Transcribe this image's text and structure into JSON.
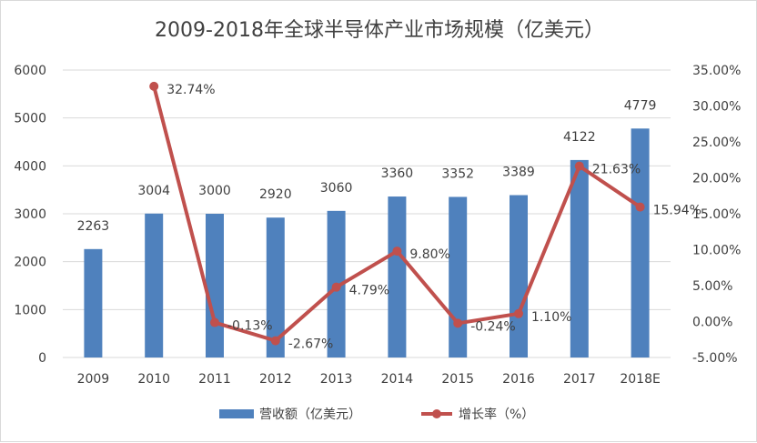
{
  "chart_data": {
    "type": "bar",
    "title": "2009-2018年全球半导体产业市场规模（亿美元）",
    "categories": [
      "2009",
      "2010",
      "2011",
      "2012",
      "2013",
      "2014",
      "2015",
      "2016",
      "2017",
      "2018E"
    ],
    "series": [
      {
        "name": "营收额（亿美元）",
        "kind": "bar",
        "axis": "left",
        "color": "#4f81bd",
        "values": [
          2263,
          3004,
          3000,
          2920,
          3060,
          3360,
          3352,
          3389,
          4122,
          4779
        ],
        "labels": [
          "2263",
          "3004",
          "3000",
          "2920",
          "3060",
          "3360",
          "3352",
          "3389",
          "4122",
          "4779"
        ]
      },
      {
        "name": "增长率（%）",
        "kind": "line",
        "axis": "right",
        "color": "#c0504d",
        "values": [
          null,
          32.74,
          -0.13,
          -2.67,
          4.79,
          9.8,
          -0.24,
          1.1,
          21.63,
          15.94
        ],
        "labels": [
          "",
          "32.74%",
          "-0.13%",
          "-2.67%",
          "4.79%",
          "9.80%",
          "-0.24%",
          "1.10%",
          "21.63%",
          "15.94%"
        ]
      }
    ],
    "y_left": {
      "min": 0,
      "max": 6000,
      "ticks": [
        "0",
        "1000",
        "2000",
        "3000",
        "4000",
        "5000",
        "6000"
      ]
    },
    "y_right": {
      "min": -5,
      "max": 35,
      "ticks": [
        "-5.00%",
        "0.00%",
        "5.00%",
        "10.00%",
        "15.00%",
        "20.00%",
        "25.00%",
        "30.00%",
        "35.00%"
      ]
    },
    "grid": true,
    "legend_position": "bottom"
  }
}
